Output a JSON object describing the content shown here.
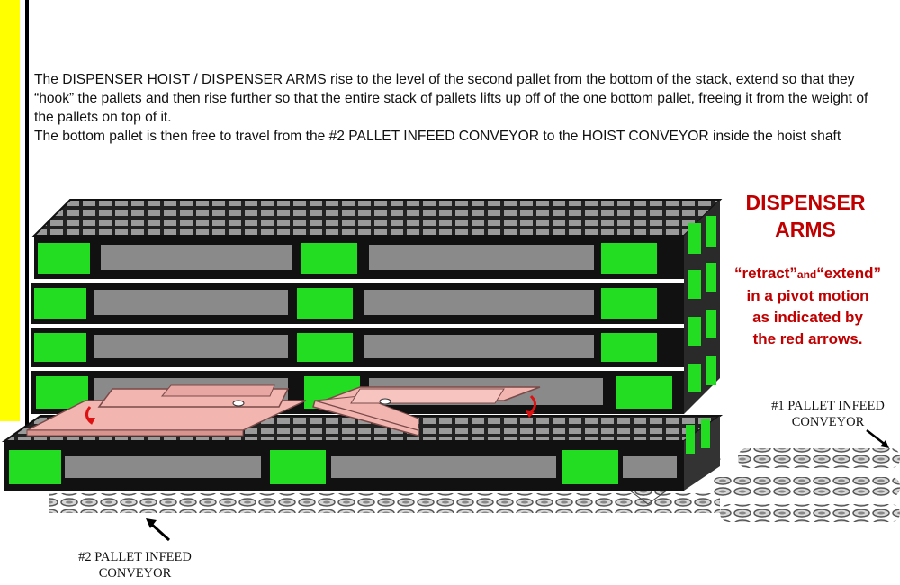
{
  "description": {
    "line1": "The DISPENSER HOIST / DISPENSER ARMS rise to the level of the second pallet from the bottom of the stack, extend so that they “hook” the pallets and then rise further so that the entire stack of pallets lifts up off of the one bottom pallet, freeing it from  the weight of the pallets on top of it.",
    "line2": "The bottom pallet is then free to travel from the #2 PALLET INFEED CONVEYOR to the HOIST CONVEYOR inside the hoist shaft"
  },
  "title": {
    "line1": "DISPENSER",
    "line2": "ARMS"
  },
  "note": {
    "retract": "“retract”",
    "and": "and",
    "extend": "“extend”",
    "line2": "in a pivot  motion",
    "line3": "as indicated by",
    "line4": "the red arrows."
  },
  "labels": {
    "conveyor1_line1": "#1 PALLET INFEED",
    "conveyor1_line2": "CONVEYOR",
    "conveyor2_line1": "#2 PALLET INFEED",
    "conveyor2_line2": "CONVEYOR"
  },
  "colors": {
    "title_red": "#c00000",
    "block_green": "#22dd22",
    "slot_gray": "#8a8a8a",
    "arm_pink": "#f2b5b0",
    "yellow_bar": "#ffff00"
  }
}
